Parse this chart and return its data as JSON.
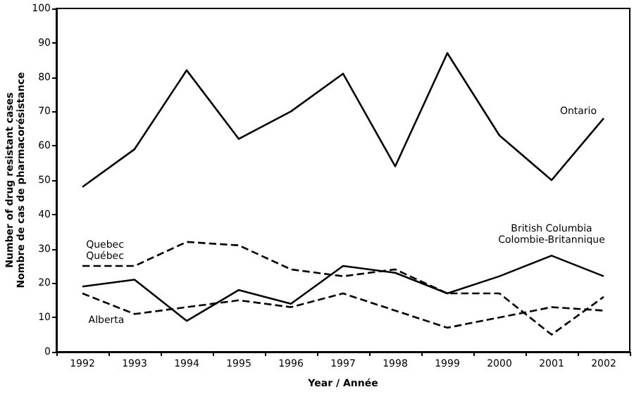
{
  "chart_data": {
    "type": "line",
    "xlabel": "Year / Année",
    "ylabel": "Number of drug resistant cases\nNombre de cas de pharmacorésistance",
    "categories": [
      "1992",
      "1993",
      "1994",
      "1995",
      "1996",
      "1997",
      "1998",
      "1999",
      "2000",
      "2001",
      "2002"
    ],
    "series": [
      {
        "name": "Ontario",
        "color": "#000000",
        "line_style": "solid",
        "values": [
          48,
          59,
          82,
          62,
          70,
          81,
          54,
          87,
          63,
          50,
          68
        ]
      },
      {
        "name": "British Columbia\nColombie-Britannique",
        "color": "#000000",
        "line_style": "solid",
        "values": [
          19,
          21,
          9,
          18,
          14,
          25,
          23,
          17,
          22,
          28,
          22
        ]
      },
      {
        "name": "Quebec\nQuébec",
        "color": "#000000",
        "line_style": "dashed",
        "values": [
          25,
          25,
          32,
          31,
          24,
          22,
          24,
          17,
          17,
          5,
          16
        ]
      },
      {
        "name": "Alberta",
        "color": "#000000",
        "line_style": "dashed",
        "values": [
          17,
          11,
          13,
          15,
          13,
          17,
          12,
          7,
          10,
          13,
          12
        ]
      }
    ],
    "ylim": [
      0,
      100
    ],
    "yticks": [
      0,
      10,
      20,
      30,
      40,
      50,
      60,
      70,
      80,
      90,
      100
    ],
    "grid": false,
    "legend": false,
    "marker": "none"
  }
}
